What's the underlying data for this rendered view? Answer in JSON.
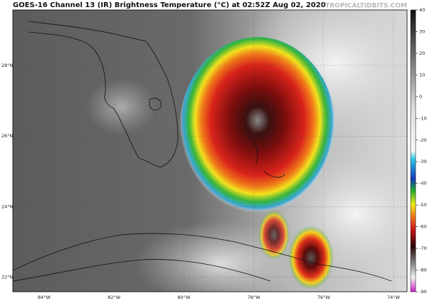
{
  "header": {
    "title": "GOES-16 Channel 13 (IR) Brightness Temperature (°C) at 02:52Z Aug 02, 2020",
    "watermark": "TROPICALTIDBITS.COM"
  },
  "map": {
    "longitude_labels": [
      "84°W",
      "82°W",
      "80°W",
      "78°W",
      "76°W",
      "74°W"
    ],
    "latitude_labels": [
      "28°N",
      "26°N",
      "24°N",
      "22°N"
    ]
  },
  "colorbar": {
    "range": [
      -90,
      40
    ],
    "ticks": [
      40,
      30,
      20,
      10,
      0,
      -10,
      -20,
      -30,
      -40,
      -50,
      -60,
      -70,
      -80,
      -90
    ]
  }
}
